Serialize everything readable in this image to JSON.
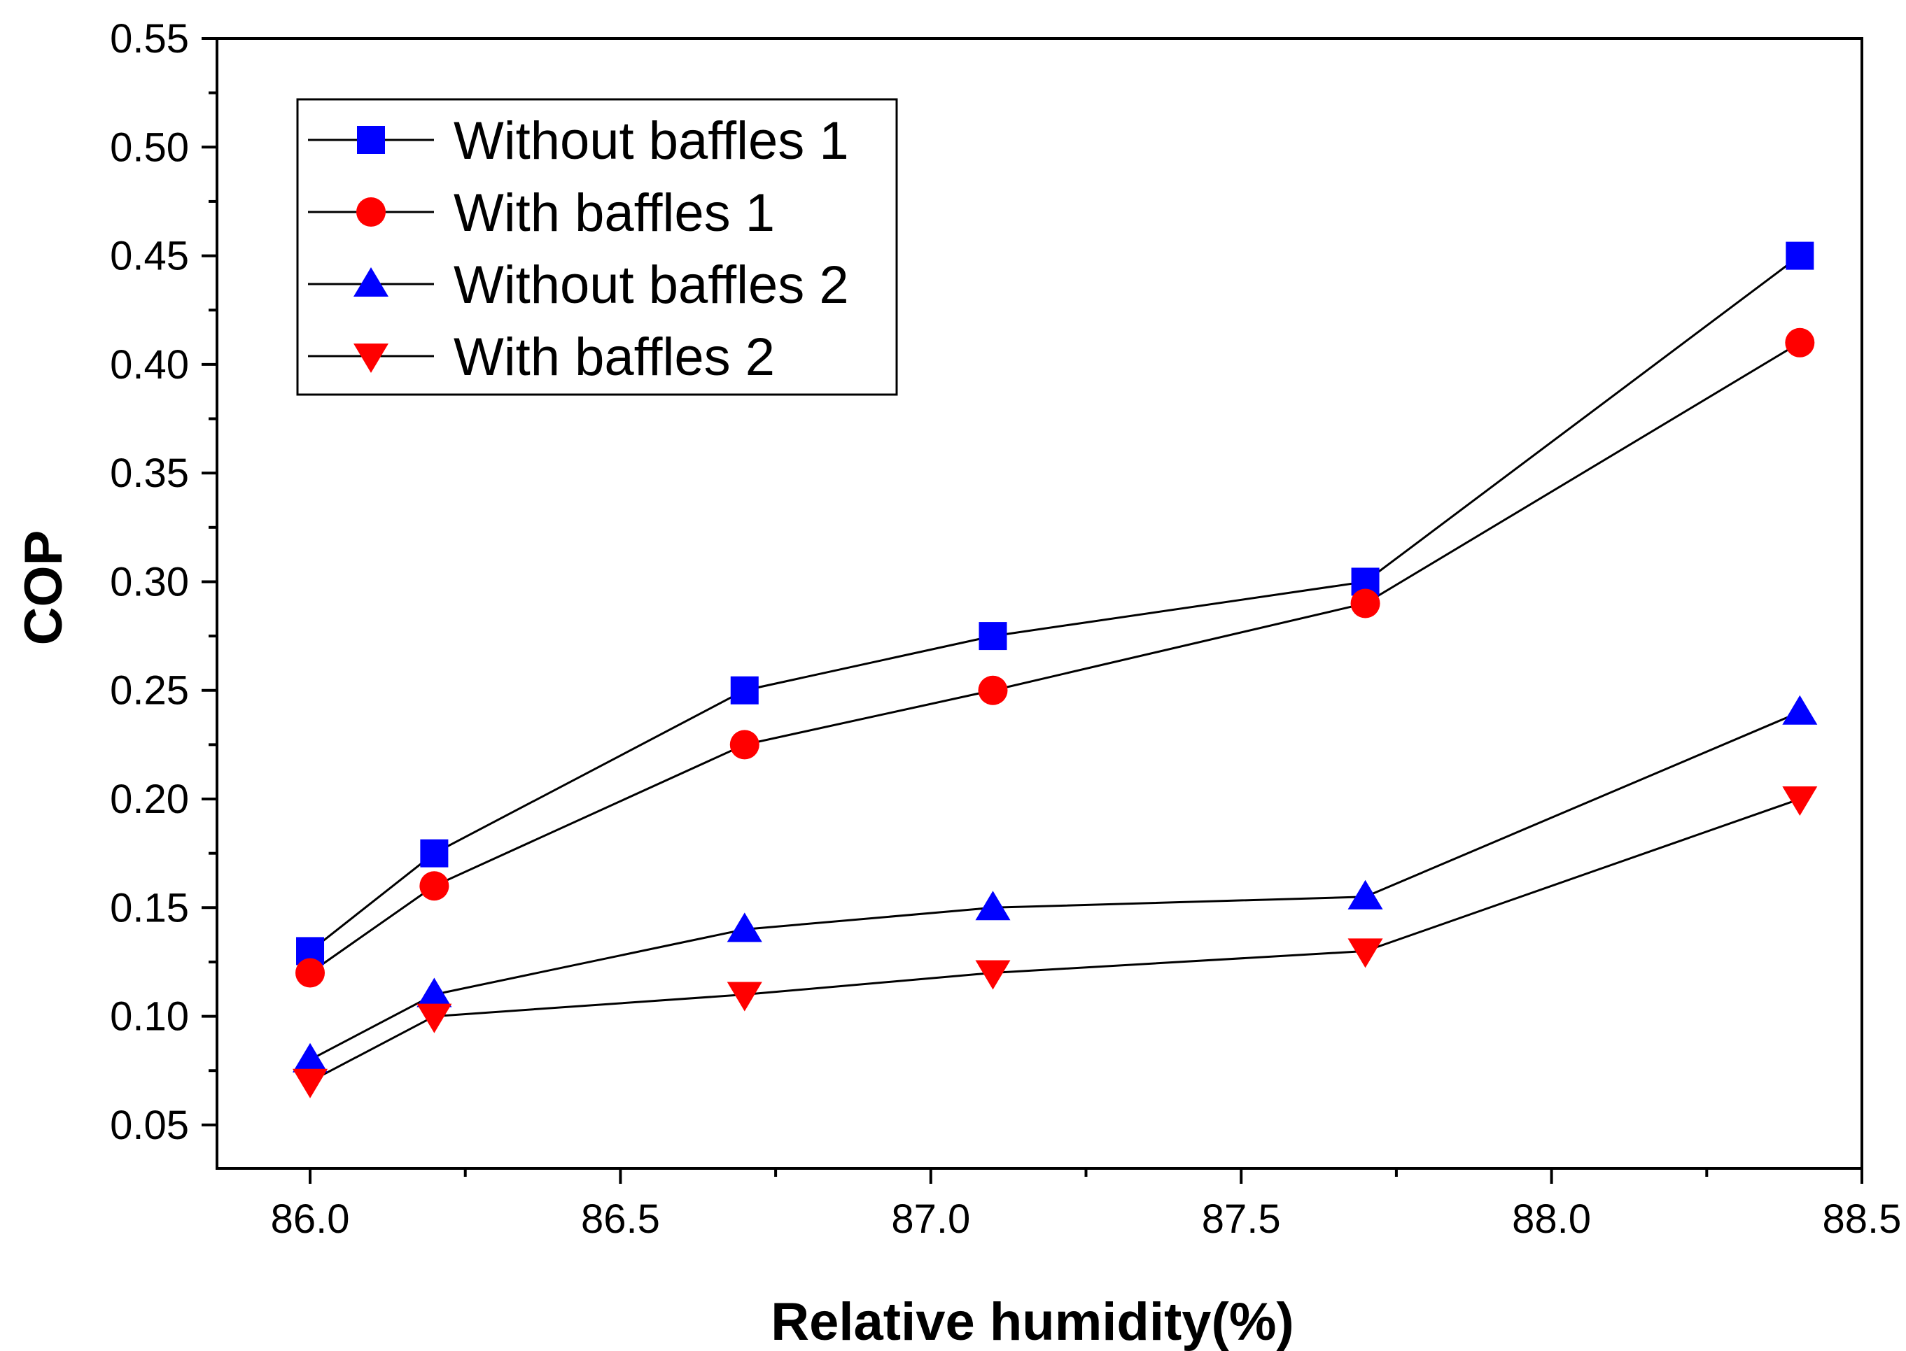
{
  "chart_data": {
    "type": "line",
    "title": "",
    "xlabel": "Relative humidity(%)",
    "ylabel": "COP",
    "xlim": [
      85.85,
      88.5
    ],
    "ylim": [
      0.03,
      0.55
    ],
    "x_ticks": [
      "86.0",
      "86.5",
      "87.0",
      "87.5",
      "88.0",
      "88.5"
    ],
    "y_ticks": [
      "0.05",
      "0.10",
      "0.15",
      "0.20",
      "0.25",
      "0.30",
      "0.35",
      "0.40",
      "0.45",
      "0.50",
      "0.55"
    ],
    "grid": false,
    "legend_position": "top-left",
    "x": [
      86.0,
      86.2,
      86.7,
      87.1,
      87.7,
      88.4
    ],
    "series": [
      {
        "name": "Without baffles 1",
        "marker": "square",
        "color": "#0000FF",
        "values": [
          0.13,
          0.175,
          0.25,
          0.275,
          0.3,
          0.45
        ]
      },
      {
        "name": "With baffles 1",
        "marker": "circle",
        "color": "#FF0000",
        "values": [
          0.12,
          0.16,
          0.225,
          0.25,
          0.29,
          0.41
        ]
      },
      {
        "name": "Without baffles 2",
        "marker": "triangle-up",
        "color": "#0000FF",
        "values": [
          0.08,
          0.11,
          0.14,
          0.15,
          0.155,
          0.24
        ]
      },
      {
        "name": "With baffles 2",
        "marker": "triangle-down",
        "color": "#FF0000",
        "values": [
          0.07,
          0.1,
          0.11,
          0.12,
          0.13,
          0.2
        ]
      }
    ]
  }
}
